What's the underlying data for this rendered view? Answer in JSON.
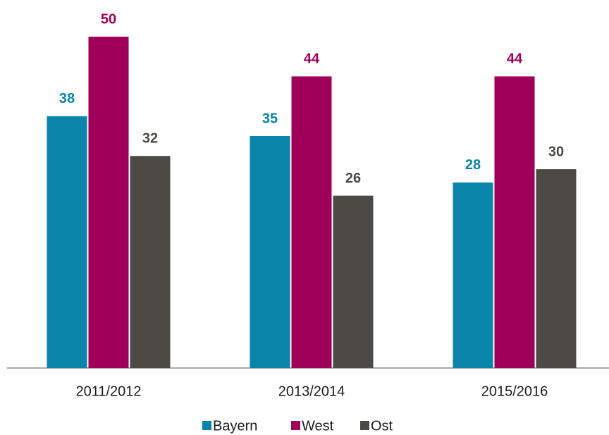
{
  "chart_data": {
    "type": "bar",
    "categories": [
      "2011/2012",
      "2013/2014",
      "2015/2016"
    ],
    "series": [
      {
        "name": "Bayern",
        "color": "#0a84a8",
        "values": [
          38,
          35,
          28
        ]
      },
      {
        "name": "West",
        "color": "#9e005a",
        "values": [
          50,
          44,
          44
        ]
      },
      {
        "name": "Ost",
        "color": "#4b4a44",
        "values": [
          32,
          26,
          30
        ]
      }
    ]
  }
}
